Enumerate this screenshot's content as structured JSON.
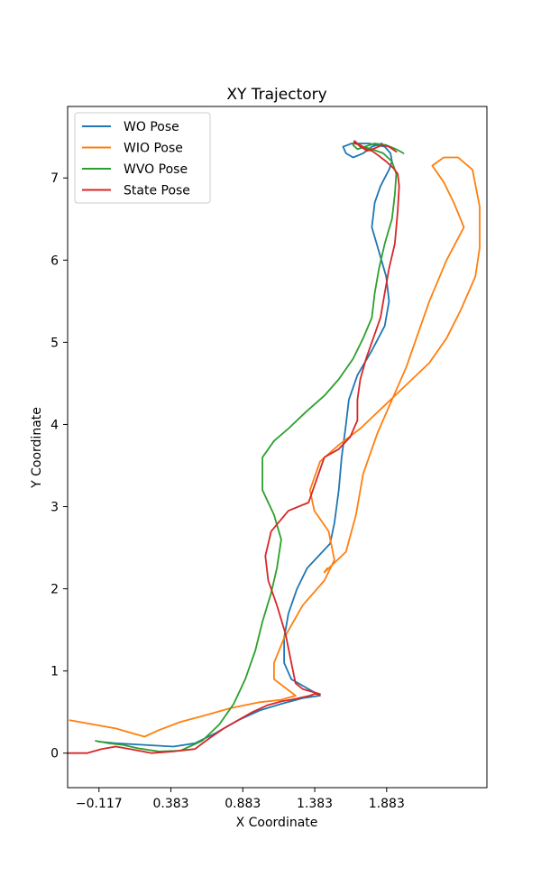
{
  "chart_data": {
    "type": "line",
    "title": "XY Trajectory",
    "xlabel": "X Coordinate",
    "ylabel": "Y Coordinate",
    "xlim": [
      -0.335,
      2.58
    ],
    "ylim": [
      -0.42,
      7.87
    ],
    "xticks": [
      -0.117,
      0.383,
      0.883,
      1.383,
      1.883
    ],
    "xtick_labels": [
      "−0.117",
      "0.383",
      "0.883",
      "1.383",
      "1.883"
    ],
    "yticks": [
      0,
      1,
      2,
      3,
      4,
      5,
      6,
      7
    ],
    "ytick_labels": [
      "0",
      "1",
      "2",
      "3",
      "4",
      "5",
      "6",
      "7"
    ],
    "grid": false,
    "legend_position": "upper-left",
    "series": [
      {
        "name": "WO Pose",
        "color": "#1f77b4",
        "x": [
          -0.12,
          0.0,
          0.2,
          0.4,
          0.55,
          0.7,
          0.85,
          1.0,
          1.15,
          1.3,
          1.42,
          1.32,
          1.22,
          1.17,
          1.17,
          1.2,
          1.26,
          1.33,
          1.42,
          1.49,
          1.52,
          1.55,
          1.57,
          1.6,
          1.62,
          1.68,
          1.78,
          1.87,
          1.9,
          1.88,
          1.83,
          1.78,
          1.8,
          1.84,
          1.87,
          1.9,
          1.92,
          1.91,
          1.87,
          1.76,
          1.64,
          1.58,
          1.6,
          1.65,
          1.72,
          1.78,
          1.85
        ],
        "y": [
          0.14,
          0.12,
          0.1,
          0.08,
          0.12,
          0.25,
          0.4,
          0.52,
          0.6,
          0.67,
          0.7,
          0.8,
          0.9,
          1.1,
          1.4,
          1.7,
          2.0,
          2.25,
          2.42,
          2.55,
          2.8,
          3.2,
          3.6,
          4.0,
          4.3,
          4.6,
          4.9,
          5.2,
          5.5,
          5.8,
          6.1,
          6.4,
          6.7,
          6.9,
          7.0,
          7.1,
          7.2,
          7.3,
          7.38,
          7.42,
          7.42,
          7.38,
          7.3,
          7.25,
          7.3,
          7.38,
          7.42
        ]
      },
      {
        "name": "WIO Pose",
        "color": "#ff7f0e",
        "x": [
          -0.32,
          0.0,
          0.1,
          0.2,
          0.3,
          0.45,
          0.6,
          0.8,
          1.0,
          1.15,
          1.25,
          1.1,
          1.1,
          1.17,
          1.3,
          1.45,
          1.52,
          1.48,
          1.38,
          1.35,
          1.42,
          1.55,
          1.7,
          1.85,
          2.0,
          2.18,
          2.3,
          2.4,
          2.5,
          2.53,
          2.53,
          2.48,
          2.38,
          2.28,
          2.2,
          2.28,
          2.35,
          2.42,
          2.3,
          2.18,
          2.1,
          2.02,
          1.92,
          1.82,
          1.72,
          1.67,
          1.6,
          1.45,
          1.47
        ],
        "y": [
          0.4,
          0.3,
          0.25,
          0.2,
          0.28,
          0.38,
          0.45,
          0.55,
          0.62,
          0.65,
          0.7,
          0.9,
          1.1,
          1.4,
          1.8,
          2.1,
          2.35,
          2.7,
          2.95,
          3.2,
          3.55,
          3.75,
          3.95,
          4.2,
          4.45,
          4.75,
          5.05,
          5.4,
          5.8,
          6.15,
          6.65,
          7.1,
          7.25,
          7.25,
          7.15,
          6.95,
          6.7,
          6.4,
          6.0,
          5.5,
          5.1,
          4.7,
          4.3,
          3.9,
          3.4,
          2.9,
          2.45,
          2.2,
          2.25
        ]
      },
      {
        "name": "WVO Pose",
        "color": "#2ca02c",
        "x": [
          -0.14,
          -0.05,
          0.05,
          0.15,
          0.3,
          0.45,
          0.6,
          0.72,
          0.82,
          0.9,
          0.97,
          1.02,
          1.08,
          1.12,
          1.15,
          1.1,
          1.02,
          1.02,
          1.1,
          1.2,
          1.32,
          1.45,
          1.55,
          1.65,
          1.72,
          1.78,
          1.8,
          1.83,
          1.87,
          1.92,
          1.94,
          1.95,
          1.92,
          1.86,
          1.78,
          1.72,
          1.68,
          1.66,
          1.65,
          1.68,
          1.73,
          1.8,
          1.88,
          1.95,
          2.0
        ],
        "y": [
          0.15,
          0.12,
          0.1,
          0.06,
          0.02,
          0.03,
          0.15,
          0.35,
          0.6,
          0.9,
          1.25,
          1.6,
          1.95,
          2.25,
          2.6,
          2.9,
          3.2,
          3.6,
          3.8,
          3.95,
          4.15,
          4.35,
          4.55,
          4.8,
          5.05,
          5.3,
          5.6,
          5.9,
          6.2,
          6.5,
          6.8,
          7.05,
          7.2,
          7.3,
          7.35,
          7.38,
          7.42,
          7.45,
          7.4,
          7.35,
          7.38,
          7.42,
          7.4,
          7.35,
          7.3
        ]
      },
      {
        "name": "State Pose",
        "color": "#d62728",
        "x": [
          -0.45,
          -0.2,
          -0.1,
          0.0,
          0.1,
          0.25,
          0.4,
          0.55,
          0.65,
          0.75,
          0.85,
          0.95,
          1.05,
          1.15,
          1.25,
          1.3,
          1.35,
          1.38,
          1.42,
          1.3,
          1.25,
          1.22,
          1.18,
          1.12,
          1.06,
          1.04,
          1.08,
          1.2,
          1.34,
          1.45,
          1.55,
          1.63,
          1.68,
          1.68,
          1.7,
          1.74,
          1.79,
          1.84,
          1.86,
          1.88,
          1.9,
          1.94,
          1.96,
          1.97,
          1.96,
          1.93,
          1.88,
          1.82,
          1.78,
          1.74,
          1.7,
          1.66,
          1.66,
          1.7,
          1.75,
          1.8,
          1.85,
          1.9,
          1.95
        ],
        "y": [
          0.0,
          0.0,
          0.05,
          0.08,
          0.05,
          0.0,
          0.02,
          0.05,
          0.18,
          0.3,
          0.4,
          0.5,
          0.58,
          0.63,
          0.66,
          0.68,
          0.7,
          0.72,
          0.72,
          0.78,
          0.85,
          1.1,
          1.45,
          1.8,
          2.1,
          2.4,
          2.7,
          2.95,
          3.05,
          3.6,
          3.7,
          3.85,
          4.05,
          4.3,
          4.55,
          4.8,
          5.05,
          5.3,
          5.5,
          5.7,
          5.9,
          6.2,
          6.6,
          6.9,
          7.05,
          7.12,
          7.2,
          7.28,
          7.33,
          7.35,
          7.4,
          7.42,
          7.45,
          7.38,
          7.33,
          7.36,
          7.4,
          7.38,
          7.32
        ]
      }
    ]
  }
}
